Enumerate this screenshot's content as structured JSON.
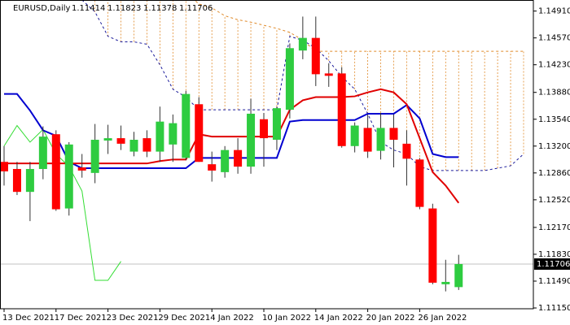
{
  "chart_data": {
    "type": "candlestick",
    "title": "EURUSD,Daily",
    "categories": [
      "13 Dec 2021",
      null,
      null,
      null,
      "17 Dec 2021",
      null,
      null,
      null,
      "23 Dec 2021",
      null,
      null,
      null,
      "29 Dec 2021",
      null,
      null,
      null,
      "4 Jan 2022",
      null,
      null,
      null,
      "10 Jan 2022",
      null,
      null,
      null,
      "14 Jan 2022",
      null,
      null,
      null,
      "20 Jan 2022",
      null,
      null,
      null,
      "26 Jan 2022",
      null,
      null,
      null,
      null,
      null,
      null,
      null,
      null
    ],
    "open": [
      1.13,
      1.1291,
      1.1262,
      1.1291,
      1.1335,
      1.1241,
      1.1293,
      1.1286,
      1.1327,
      1.133,
      1.1313,
      1.133,
      1.1313,
      1.1322,
      1.1305,
      1.1373,
      1.1297,
      1.1287,
      1.1315,
      1.1294,
      1.1354,
      1.1328,
      1.1366,
      1.1441,
      1.1457,
      1.1412,
      1.1412,
      1.132,
      1.1343,
      1.1314,
      1.1343,
      1.1323,
      1.1303,
      1.1241,
      1.1145,
      1.11414,
      null,
      null,
      null,
      null,
      null
    ],
    "high": [
      1.132,
      1.13,
      1.13,
      1.1345,
      1.134,
      1.1325,
      1.131,
      1.1348,
      1.1347,
      1.1346,
      1.1338,
      1.134,
      1.137,
      1.136,
      1.139,
      1.1382,
      1.1313,
      1.132,
      1.133,
      1.138,
      1.1362,
      1.137,
      1.145,
      1.1484,
      1.1484,
      1.1425,
      1.142,
      1.135,
      1.136,
      1.1362,
      1.136,
      1.134,
      1.1305,
      1.1247,
      1.1176,
      1.11823,
      null,
      null,
      null,
      null,
      null
    ],
    "low": [
      1.127,
      1.1258,
      1.1225,
      1.1278,
      1.1238,
      1.1232,
      1.128,
      1.1273,
      1.131,
      1.1315,
      1.1307,
      1.1306,
      1.13,
      1.13,
      1.1302,
      1.13,
      1.1275,
      1.128,
      1.1285,
      1.1285,
      1.1294,
      1.1315,
      1.1355,
      1.143,
      1.1396,
      1.1395,
      1.1318,
      1.1312,
      1.1305,
      1.1303,
      1.1293,
      1.127,
      1.124,
      1.1145,
      1.1136,
      1.11378,
      null,
      null,
      null,
      null,
      null
    ],
    "close": [
      1.1288,
      1.1262,
      1.1291,
      1.1332,
      1.124,
      1.1322,
      1.1289,
      1.1328,
      1.133,
      1.1323,
      1.1328,
      1.1313,
      1.1351,
      1.1349,
      1.1386,
      1.13,
      1.1289,
      1.1315,
      1.1294,
      1.1361,
      1.133,
      1.1368,
      1.1444,
      1.1457,
      1.1411,
      1.1409,
      1.132,
      1.1346,
      1.1313,
      1.1343,
      1.1328,
      1.1304,
      1.1243,
      1.1147,
      1.1148,
      1.11706,
      null,
      null,
      null,
      null,
      null
    ],
    "up_color": "#2ecc40",
    "down_color": "#ff0000",
    "indicators": {
      "tenkan": {
        "color": "#e00000",
        "dash": false,
        "values": [
          1.1298,
          1.1298,
          1.1298,
          1.1298,
          1.1298,
          1.1298,
          1.1298,
          1.1298,
          1.1298,
          1.1298,
          1.1298,
          1.1298,
          1.1301,
          1.1303,
          1.1303,
          1.1335,
          1.1332,
          1.1332,
          1.1332,
          1.1332,
          1.1332,
          1.1332,
          1.1366,
          1.1378,
          1.1382,
          1.1382,
          1.1382,
          1.1383,
          1.1388,
          1.1392,
          1.1388,
          1.1373,
          1.133,
          1.1287,
          1.127,
          1.1248,
          null,
          null,
          null,
          null,
          null
        ]
      },
      "kijun": {
        "color": "#0000d0",
        "dash": false,
        "values": [
          1.1386,
          1.1386,
          1.1365,
          1.134,
          1.1333,
          1.13,
          1.1292,
          1.1292,
          1.1292,
          1.1292,
          1.1292,
          1.1292,
          1.1292,
          1.1292,
          1.1292,
          1.1305,
          1.1305,
          1.1305,
          1.1305,
          1.1305,
          1.1305,
          1.1305,
          1.1351,
          1.1353,
          1.1353,
          1.1353,
          1.1353,
          1.1353,
          1.1361,
          1.1361,
          1.1361,
          1.1372,
          1.1355,
          1.131,
          1.1306,
          1.1306,
          null,
          null,
          null,
          null,
          null
        ]
      },
      "chikou": {
        "color": "#33dd33",
        "dash": false,
        "values": [
          1.132,
          1.1346,
          1.1325,
          1.1341,
          1.131,
          1.1294,
          1.1263,
          1.115,
          1.115,
          1.1174,
          null,
          null,
          null,
          null,
          null,
          null,
          null,
          null,
          null,
          null,
          null,
          null,
          null,
          null,
          null,
          null,
          null,
          null,
          null,
          null,
          null,
          null,
          null,
          null,
          null,
          null,
          null,
          null,
          null,
          null,
          null
        ]
      },
      "span_a": {
        "color": "#1a1a9a",
        "dash": true,
        "values": [
          null,
          null,
          null,
          null,
          null,
          null,
          1.1505,
          1.149,
          1.1459,
          1.1452,
          1.1452,
          1.1449,
          1.1423,
          1.1392,
          1.1382,
          1.1366,
          1.1366,
          1.1366,
          1.1366,
          1.1366,
          1.1366,
          1.1366,
          1.1459,
          1.1454,
          1.1444,
          1.1428,
          1.1408,
          1.1392,
          1.1361,
          1.1325,
          1.1315,
          1.131,
          1.1294,
          1.1289,
          1.1289,
          1.1289,
          1.1289,
          1.1289,
          1.1292,
          1.1295,
          1.131
        ]
      },
      "span_b": {
        "color": "#e08a2a",
        "dash": true,
        "values": [
          null,
          null,
          null,
          null,
          null,
          null,
          1.1515,
          1.1515,
          1.1515,
          1.1515,
          1.1515,
          1.1515,
          1.1515,
          1.1515,
          1.1515,
          1.15,
          1.1495,
          1.1485,
          1.148,
          1.1477,
          1.1473,
          1.1469,
          1.1464,
          1.1454,
          1.144,
          1.144,
          1.144,
          1.144,
          1.144,
          1.144,
          1.144,
          1.144,
          1.144,
          1.144,
          1.144,
          1.144,
          1.144,
          1.144,
          1.144,
          1.144,
          1.144
        ]
      }
    },
    "cloud_color": "#e08a2a",
    "ylim": [
      1.1114,
      1.1505
    ],
    "yticks": [
      {
        "value": 1.1491,
        "label": "1.14910"
      },
      {
        "value": 1.1457,
        "label": "1.14570"
      },
      {
        "value": 1.1423,
        "label": "1.14230"
      },
      {
        "value": 1.1388,
        "label": "1.13880"
      },
      {
        "value": 1.1354,
        "label": "1.13540"
      },
      {
        "value": 1.132,
        "label": "1.13200"
      },
      {
        "value": 1.1286,
        "label": "1.12860"
      },
      {
        "value": 1.1252,
        "label": "1.12520"
      },
      {
        "value": 1.1217,
        "label": "1.12170"
      },
      {
        "value": 1.1183,
        "label": "1.11830"
      },
      {
        "value": 1.1149,
        "label": "1.11490"
      },
      {
        "value": 1.1115,
        "label": "1.11150"
      }
    ]
  }
}
